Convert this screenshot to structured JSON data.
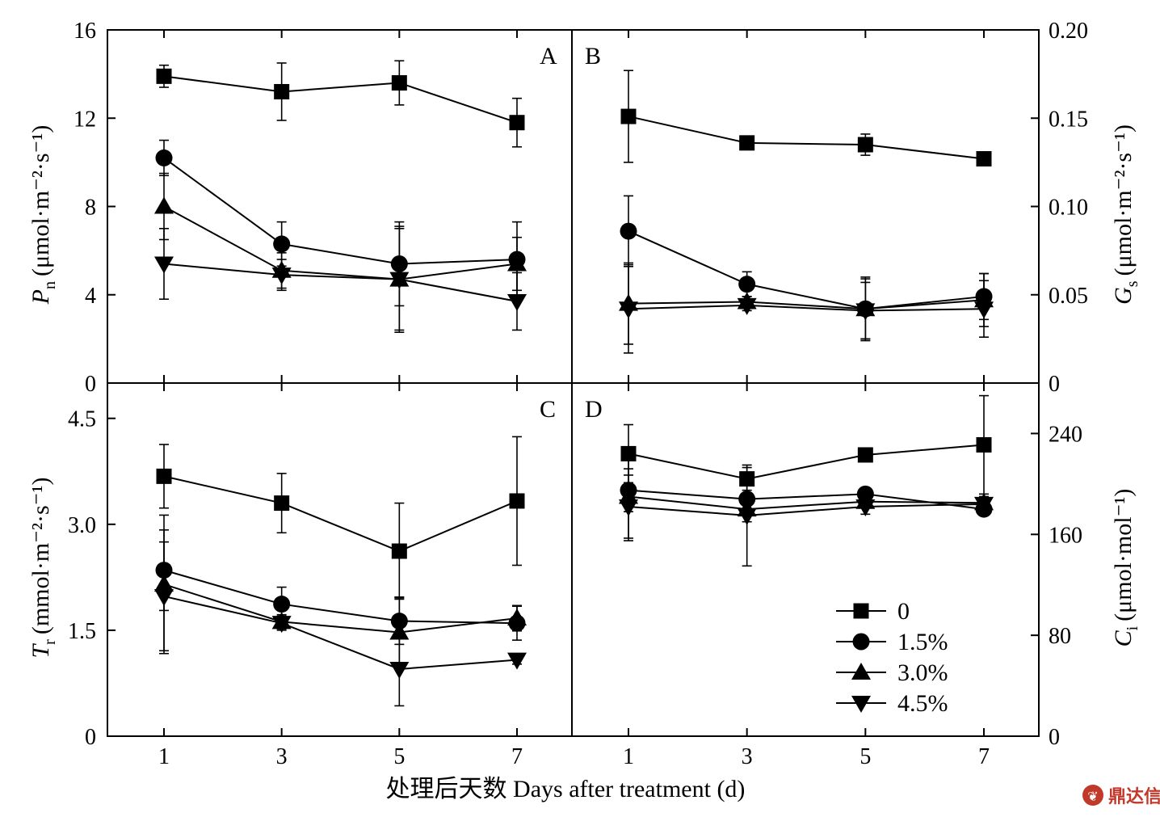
{
  "chart_data": [
    {
      "panel": "A",
      "type": "line",
      "x": [
        1,
        3,
        5,
        7
      ],
      "ylabel": {
        "sym": "P",
        "sub": "n",
        "unit": "(μmol·m⁻²·s⁻¹)"
      },
      "ylim": [
        0,
        16
      ],
      "yticks": [
        "0",
        "4",
        "8",
        "12",
        "16"
      ],
      "axis_side": "left",
      "series": [
        {
          "name": "0",
          "marker": "square",
          "values": [
            13.9,
            13.2,
            13.6,
            11.8
          ],
          "err": [
            0.5,
            1.3,
            1.0,
            1.1
          ]
        },
        {
          "name": "1.5%",
          "marker": "circle",
          "values": [
            10.2,
            6.3,
            5.4,
            5.6
          ],
          "err": [
            0.8,
            1.0,
            1.9,
            1.7
          ]
        },
        {
          "name": "3.0%",
          "marker": "triangle-up",
          "values": [
            8.0,
            5.1,
            4.7,
            5.4
          ],
          "err": [
            1.5,
            0.8,
            2.3,
            1.2
          ]
        },
        {
          "name": "4.5%",
          "marker": "triangle-down",
          "values": [
            5.4,
            4.9,
            4.7,
            3.7
          ],
          "err": [
            1.6,
            0.7,
            2.4,
            1.3
          ]
        }
      ]
    },
    {
      "panel": "B",
      "type": "line",
      "x": [
        1,
        3,
        5,
        7
      ],
      "ylabel": {
        "sym": "G",
        "sub": "s",
        "unit": "(μmol·m⁻²·s⁻¹)"
      },
      "ylim": [
        0,
        0.2
      ],
      "yticks": [
        "0",
        "0.05",
        "0.10",
        "0.15",
        "0.20"
      ],
      "axis_side": "right",
      "series": [
        {
          "name": "0",
          "marker": "square",
          "values": [
            0.151,
            0.136,
            0.135,
            0.127
          ],
          "err": [
            0.026,
            0.003,
            0.006,
            0.003
          ]
        },
        {
          "name": "1.5%",
          "marker": "circle",
          "values": [
            0.086,
            0.056,
            0.042,
            0.049
          ],
          "err": [
            0.02,
            0.007,
            0.018,
            0.013
          ]
        },
        {
          "name": "3.0%",
          "marker": "triangle-up",
          "values": [
            0.045,
            0.046,
            0.042,
            0.047
          ],
          "err": [
            0.023,
            0.003,
            0.017,
            0.015
          ]
        },
        {
          "name": "4.5%",
          "marker": "triangle-down",
          "values": [
            0.042,
            0.044,
            0.041,
            0.042
          ],
          "err": [
            0.025,
            0.003,
            0.016,
            0.016
          ]
        }
      ]
    },
    {
      "panel": "C",
      "type": "line",
      "x": [
        1,
        3,
        5,
        7
      ],
      "ylabel": {
        "sym": "T",
        "sub": "r",
        "unit": "(mmol·m⁻²·s⁻¹)"
      },
      "ylim": [
        0,
        5
      ],
      "yticks": [
        "0",
        "1.5",
        "3.0",
        "4.5"
      ],
      "ytick_values": [
        0,
        1.5,
        3.0,
        4.5
      ],
      "axis_side": "left",
      "series": [
        {
          "name": "0",
          "marker": "square",
          "values": [
            3.68,
            3.3,
            2.62,
            3.33
          ],
          "err": [
            0.45,
            0.42,
            0.68,
            0.91
          ]
        },
        {
          "name": "1.5%",
          "marker": "circle",
          "values": [
            2.35,
            1.87,
            1.63,
            1.6
          ],
          "err": [
            0.57,
            0.24,
            0.33,
            0.24
          ]
        },
        {
          "name": "3.0%",
          "marker": "triangle-up",
          "values": [
            2.15,
            1.62,
            1.47,
            1.67
          ],
          "err": [
            0.98,
            0.1,
            0.5,
            0.18
          ]
        },
        {
          "name": "4.5%",
          "marker": "triangle-down",
          "values": [
            1.98,
            1.6,
            0.95,
            1.08
          ],
          "err": [
            0.77,
            0.1,
            0.52,
            0.06
          ]
        }
      ]
    },
    {
      "panel": "D",
      "type": "line",
      "x": [
        1,
        3,
        5,
        7
      ],
      "ylabel": {
        "sym": "C",
        "sub": "i",
        "unit": "(μmol·mol⁻¹)"
      },
      "ylim": [
        0,
        280
      ],
      "yticks": [
        "0",
        "80",
        "160",
        "240"
      ],
      "ytick_values": [
        0,
        80,
        160,
        240
      ],
      "axis_side": "right",
      "series": [
        {
          "name": "0",
          "marker": "square",
          "values": [
            224,
            204,
            223,
            231
          ],
          "err": [
            23,
            9,
            4,
            39
          ]
        },
        {
          "name": "1.5%",
          "marker": "circle",
          "values": [
            195,
            188,
            192,
            180
          ],
          "err": [
            17,
            4,
            4,
            4
          ]
        },
        {
          "name": "3.0%",
          "marker": "triangle-up",
          "values": [
            190,
            180,
            186,
            185
          ],
          "err": [
            35,
            10,
            5,
            3
          ]
        },
        {
          "name": "4.5%",
          "marker": "triangle-down",
          "values": [
            182,
            175,
            182,
            184
          ],
          "err": [
            25,
            40,
            6,
            6
          ]
        }
      ]
    }
  ],
  "x_ticks": [
    "1",
    "3",
    "5",
    "7"
  ],
  "x_axis_label": "处理后天数 Days after treatment (d)",
  "legend": {
    "placement": "inside panel D, bottom-right",
    "entries": [
      "0",
      "1.5%",
      "3.0%",
      "4.5%"
    ]
  },
  "watermark": "鼎达信"
}
